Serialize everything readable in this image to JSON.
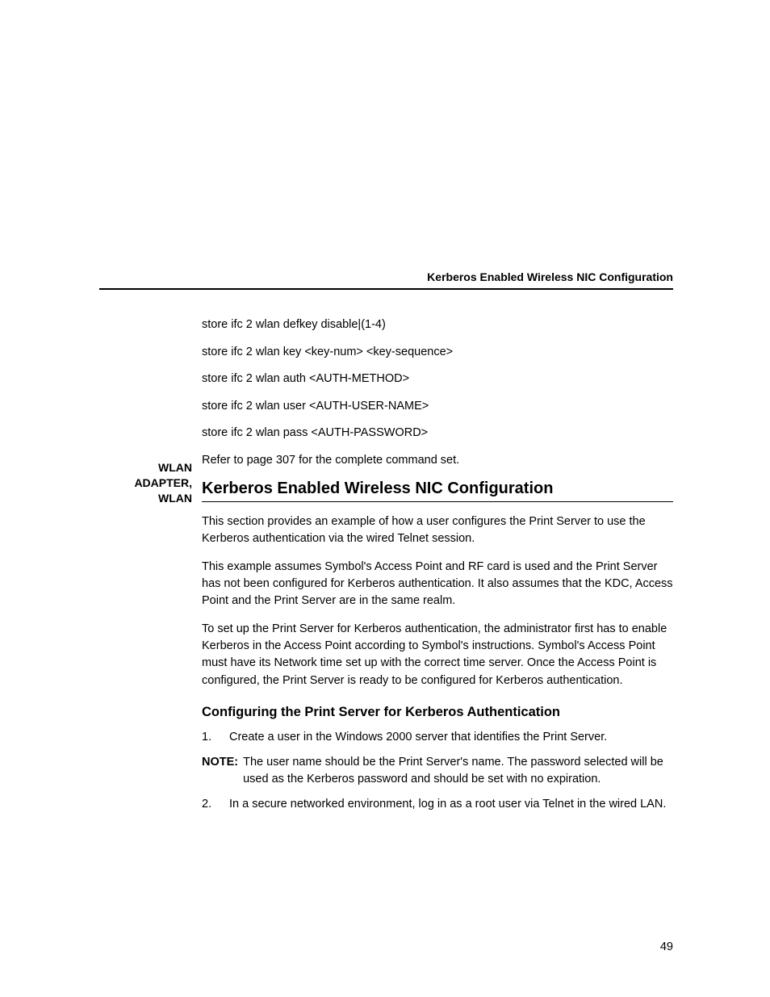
{
  "running_head": "Kerberos Enabled Wireless NIC Configuration",
  "margin_label_line1": "WLAN",
  "margin_label_line2": "ADAPTER,",
  "margin_label_line3": "WLAN",
  "commands": {
    "c1": "store ifc 2 wlan defkey disable|(1-4)",
    "c2": "store ifc 2 wlan key <key-num> <key-sequence>",
    "c3": "store ifc 2 wlan auth <AUTH-METHOD>",
    "c4": "store ifc 2 wlan user <AUTH-USER-NAME>",
    "c5": "store ifc 2 wlan pass <AUTH-PASSWORD>",
    "c6": "Refer to page 307 for the complete command set."
  },
  "section_heading": "Kerberos Enabled Wireless NIC Configuration",
  "paragraphs": {
    "p1": "This section provides an example of how a user configures the Print Server to use the Kerberos authentication via the wired Telnet session.",
    "p2": "This example assumes Symbol's Access Point and RF card is used and the Print Server has not been configured for Kerberos authentication. It also assumes that the KDC, Access Point and the Print Server are in the same realm.",
    "p3": "To set up the Print Server for Kerberos authentication, the administrator first has to enable Kerberos in the Access Point according to Symbol's instructions. Symbol's Access Point must have its Network time set up with the correct time server. Once the Access Point is configured, the Print Server is ready to be configured for Kerberos authentication."
  },
  "sub_heading": "Configuring the Print Server for Kerberos Authentication",
  "steps": {
    "s1_num": "1.",
    "s1_text": "Create a user in the Windows 2000 server that identifies the Print Server.",
    "note_label": "NOTE:",
    "note_text": "The user name should be the Print Server's name. The password selected will be used as the Kerberos password and should be set with no expiration.",
    "s2_num": "2.",
    "s2_text": "In a secure networked environment, log in as a root user via Telnet in the wired LAN."
  },
  "page_number": "49",
  "colors": {
    "text": "#000000",
    "background": "#ffffff",
    "rule": "#000000"
  },
  "fonts": {
    "body_size_pt": 14.5,
    "heading_size_pt": 20,
    "subheading_size_pt": 16.5,
    "running_head_size_pt": 14,
    "family": "Arial, Helvetica, sans-serif"
  }
}
